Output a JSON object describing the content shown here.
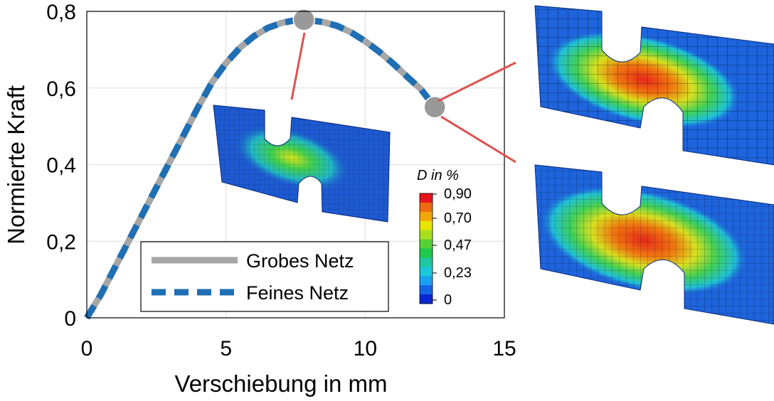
{
  "chart_data": {
    "type": "line",
    "xlabel": "Verschiebung in mm",
    "ylabel": "Normierte Kraft",
    "xlim": [
      0,
      15
    ],
    "ylim": [
      0,
      0.8
    ],
    "xticks": [
      "0",
      "5",
      "10",
      "15"
    ],
    "yticks": [
      "0",
      "0,2",
      "0,4",
      "0,6",
      "0,8"
    ],
    "grid": true,
    "legend_position": "bottom-center",
    "series": [
      {
        "name": "Grobes Netz",
        "style": "solid",
        "color": "#a6a6a6",
        "x": [
          0,
          0.5,
          1,
          1.5,
          2,
          2.5,
          3,
          3.5,
          4,
          4.5,
          5,
          5.5,
          6,
          6.5,
          7,
          7.5,
          7.8,
          8,
          8.5,
          9,
          9.5,
          10,
          10.5,
          11,
          11.5,
          12,
          12.5
        ],
        "y": [
          0,
          0.06,
          0.13,
          0.2,
          0.27,
          0.34,
          0.41,
          0.48,
          0.55,
          0.615,
          0.665,
          0.705,
          0.735,
          0.757,
          0.77,
          0.777,
          0.778,
          0.777,
          0.772,
          0.762,
          0.745,
          0.722,
          0.695,
          0.664,
          0.63,
          0.597,
          0.55
        ]
      },
      {
        "name": "Feines Netz",
        "style": "dashed",
        "color": "#1f6fb4",
        "x": [
          0,
          0.5,
          1,
          1.5,
          2,
          2.5,
          3,
          3.5,
          4,
          4.5,
          5,
          5.5,
          6,
          6.5,
          7,
          7.5,
          7.8,
          8,
          8.5,
          9,
          9.5,
          10,
          10.5,
          11,
          11.5,
          12,
          12.5
        ],
        "y": [
          0,
          0.06,
          0.13,
          0.2,
          0.27,
          0.34,
          0.41,
          0.48,
          0.55,
          0.615,
          0.665,
          0.705,
          0.735,
          0.757,
          0.77,
          0.777,
          0.778,
          0.777,
          0.772,
          0.762,
          0.745,
          0.722,
          0.695,
          0.664,
          0.63,
          0.597,
          0.55
        ]
      }
    ],
    "markers": [
      {
        "x": 7.8,
        "y": 0.778,
        "color": "#999999"
      },
      {
        "x": 12.5,
        "y": 0.55,
        "color": "#999999"
      }
    ],
    "colorbar": {
      "title": "D in %",
      "labels": [
        "0,90",
        "0,70",
        "0,47",
        "0,23",
        "0"
      ],
      "colors": [
        "#e8141c",
        "#f06a10",
        "#f2a60a",
        "#e6e600",
        "#a8e020",
        "#55d235",
        "#20c84a",
        "#1ec8a0",
        "#1ac8dc",
        "#1aa0f0",
        "#1464e6",
        "#0a28d2"
      ]
    },
    "colors": {
      "connector": "#e05050",
      "mesh_low": "#1464dc",
      "mesh_mid": "#35d060",
      "mesh_high": "#e6321e"
    }
  }
}
